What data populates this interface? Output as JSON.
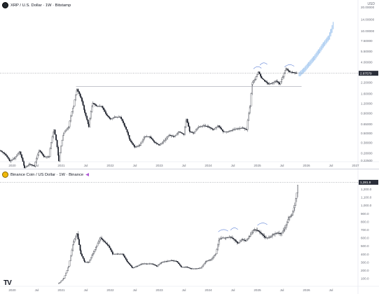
{
  "panel_top": {
    "legend": "XRP / U.S. Dollar · 1W · Bitstamp",
    "currency_label": "USD",
    "price_tag": "2.87579",
    "y_ticks": [
      "20.00000",
      "14.00000",
      "10.00000",
      "7.50000",
      "5.50000",
      "4.00000",
      "3.00000",
      "2.20000",
      "1.60000",
      "1.20000",
      "0.90000",
      "0.65000",
      "0.50000",
      "0.38000",
      "0.28000",
      "0.22500"
    ],
    "x_ticks": [
      "2020",
      "Jul",
      "2021",
      "Jul",
      "2022",
      "Jul",
      "2023",
      "Jul",
      "2024",
      "Jul",
      "2025",
      "Jul",
      "2026",
      "Jul",
      "2027"
    ]
  },
  "panel_bottom": {
    "legend": "Binance Coin / US Dollar · 1W · Binance",
    "currency_label": "USD",
    "price_tag": "1,281.9",
    "y_ticks": [
      "1,200.0",
      "1,100.0",
      "1,000.0",
      "900.0",
      "800.0",
      "700.0",
      "600.0",
      "500.0",
      "400.0",
      "300.0",
      "200.0",
      "100.0"
    ],
    "x_ticks": [
      "2020",
      "Jul",
      "2021",
      "Jul",
      "2022",
      "Jul",
      "2023",
      "Jul",
      "2024",
      "Jul",
      "2025",
      "Jul",
      "2026",
      "Jul"
    ]
  },
  "tv_logo": "TV",
  "chart_data": [
    {
      "type": "candlestick",
      "title": "XRP / U.S. Dollar · 1W · Bitstamp",
      "scale": "log",
      "ylim": [
        0.225,
        20
      ],
      "xlim": [
        2019.75,
        2027.05
      ],
      "price_line": 2.87579,
      "support_level": 1.95,
      "support_start": 2021.3,
      "projection_color": "#9dc4ef",
      "series": [
        {
          "name": "XRP/USD",
          "points": [
            [
              2019.75,
              0.3
            ],
            [
              2019.85,
              0.27
            ],
            [
              2019.95,
              0.22
            ],
            [
              2020.05,
              0.24
            ],
            [
              2020.15,
              0.29
            ],
            [
              2020.25,
              0.18
            ],
            [
              2020.35,
              0.2
            ],
            [
              2020.45,
              0.19
            ],
            [
              2020.55,
              0.3
            ],
            [
              2020.65,
              0.25
            ],
            [
              2020.75,
              0.25
            ],
            [
              2020.85,
              0.55
            ],
            [
              2020.95,
              0.22
            ],
            [
              2021.05,
              0.5
            ],
            [
              2021.15,
              0.6
            ],
            [
              2021.25,
              1.1
            ],
            [
              2021.32,
              1.8
            ],
            [
              2021.4,
              1.4
            ],
            [
              2021.48,
              0.9
            ],
            [
              2021.56,
              0.6
            ],
            [
              2021.64,
              1.2
            ],
            [
              2021.72,
              1.1
            ],
            [
              2021.82,
              1.1
            ],
            [
              2021.92,
              0.85
            ],
            [
              2022.0,
              0.75
            ],
            [
              2022.1,
              0.8
            ],
            [
              2022.2,
              0.8
            ],
            [
              2022.3,
              0.6
            ],
            [
              2022.4,
              0.4
            ],
            [
              2022.5,
              0.33
            ],
            [
              2022.6,
              0.35
            ],
            [
              2022.7,
              0.45
            ],
            [
              2022.8,
              0.45
            ],
            [
              2022.9,
              0.38
            ],
            [
              2023.0,
              0.35
            ],
            [
              2023.1,
              0.4
            ],
            [
              2023.2,
              0.47
            ],
            [
              2023.3,
              0.45
            ],
            [
              2023.4,
              0.52
            ],
            [
              2023.5,
              0.48
            ],
            [
              2023.55,
              0.75
            ],
            [
              2023.62,
              0.52
            ],
            [
              2023.7,
              0.5
            ],
            [
              2023.8,
              0.6
            ],
            [
              2023.9,
              0.62
            ],
            [
              2024.0,
              0.6
            ],
            [
              2024.1,
              0.55
            ],
            [
              2024.2,
              0.62
            ],
            [
              2024.3,
              0.52
            ],
            [
              2024.4,
              0.52
            ],
            [
              2024.5,
              0.55
            ],
            [
              2024.6,
              0.57
            ],
            [
              2024.7,
              0.58
            ],
            [
              2024.78,
              0.55
            ],
            [
              2024.85,
              1.1
            ],
            [
              2024.9,
              2.2
            ],
            [
              2024.95,
              2.4
            ],
            [
              2025.02,
              3.0
            ],
            [
              2025.08,
              2.5
            ],
            [
              2025.15,
              2.3
            ],
            [
              2025.22,
              2.1
            ],
            [
              2025.3,
              2.15
            ],
            [
              2025.38,
              2.3
            ],
            [
              2025.45,
              2.1
            ],
            [
              2025.52,
              2.6
            ],
            [
              2025.58,
              3.3
            ],
            [
              2025.65,
              3.0
            ],
            [
              2025.72,
              2.95
            ],
            [
              2025.78,
              2.9
            ],
            [
              2025.82,
              2.87
            ]
          ]
        },
        {
          "name": "projection",
          "points": [
            [
              2025.85,
              2.8
            ],
            [
              2025.95,
              3.2
            ],
            [
              2026.05,
              3.8
            ],
            [
              2026.15,
              4.5
            ],
            [
              2026.25,
              5.5
            ],
            [
              2026.35,
              6.8
            ],
            [
              2026.45,
              8.2
            ],
            [
              2026.5,
              10.0
            ],
            [
              2026.55,
              12.5
            ]
          ]
        }
      ],
      "x_ticks": [
        "2020",
        "Jul",
        "2021",
        "Jul",
        "2022",
        "Jul",
        "2023",
        "Jul",
        "2024",
        "Jul",
        "2025",
        "Jul",
        "2026",
        "Jul",
        "2027"
      ]
    },
    {
      "type": "candlestick",
      "title": "Binance Coin / US Dollar · 1W · Binance",
      "scale": "linear",
      "ylim": [
        20,
        1320
      ],
      "xlim": [
        2019.75,
        2027.05
      ],
      "price_line": 1281.9,
      "series": [
        {
          "name": "BNB/USD",
          "points": [
            [
              2020.95,
              40
            ],
            [
              2021.05,
              100
            ],
            [
              2021.15,
              250
            ],
            [
              2021.25,
              550
            ],
            [
              2021.32,
              650
            ],
            [
              2021.4,
              400
            ],
            [
              2021.48,
              300
            ],
            [
              2021.56,
              300
            ],
            [
              2021.64,
              400
            ],
            [
              2021.72,
              500
            ],
            [
              2021.8,
              600
            ],
            [
              2021.88,
              550
            ],
            [
              2021.96,
              500
            ],
            [
              2022.05,
              400
            ],
            [
              2022.15,
              400
            ],
            [
              2022.25,
              400
            ],
            [
              2022.35,
              300
            ],
            [
              2022.45,
              230
            ],
            [
              2022.55,
              250
            ],
            [
              2022.65,
              280
            ],
            [
              2022.75,
              280
            ],
            [
              2022.85,
              280
            ],
            [
              2022.95,
              250
            ],
            [
              2023.05,
              300
            ],
            [
              2023.15,
              310
            ],
            [
              2023.25,
              320
            ],
            [
              2023.35,
              310
            ],
            [
              2023.45,
              240
            ],
            [
              2023.55,
              240
            ],
            [
              2023.65,
              220
            ],
            [
              2023.75,
              220
            ],
            [
              2023.85,
              230
            ],
            [
              2023.95,
              310
            ],
            [
              2024.05,
              330
            ],
            [
              2024.15,
              400
            ],
            [
              2024.22,
              580
            ],
            [
              2024.28,
              600
            ],
            [
              2024.36,
              600
            ],
            [
              2024.44,
              610
            ],
            [
              2024.52,
              580
            ],
            [
              2024.6,
              530
            ],
            [
              2024.68,
              580
            ],
            [
              2024.76,
              560
            ],
            [
              2024.84,
              620
            ],
            [
              2024.92,
              700
            ],
            [
              2025.0,
              690
            ],
            [
              2025.08,
              650
            ],
            [
              2025.16,
              600
            ],
            [
              2025.24,
              600
            ],
            [
              2025.32,
              640
            ],
            [
              2025.4,
              660
            ],
            [
              2025.48,
              650
            ],
            [
              2025.56,
              720
            ],
            [
              2025.64,
              850
            ],
            [
              2025.7,
              880
            ],
            [
              2025.76,
              1000
            ],
            [
              2025.8,
              1150
            ],
            [
              2025.83,
              1282
            ]
          ]
        }
      ],
      "x_ticks": [
        "2020",
        "Jul",
        "2021",
        "Jul",
        "2022",
        "Jul",
        "2023",
        "Jul",
        "2024",
        "Jul",
        "2025",
        "Jul",
        "2026",
        "Jul"
      ]
    }
  ]
}
